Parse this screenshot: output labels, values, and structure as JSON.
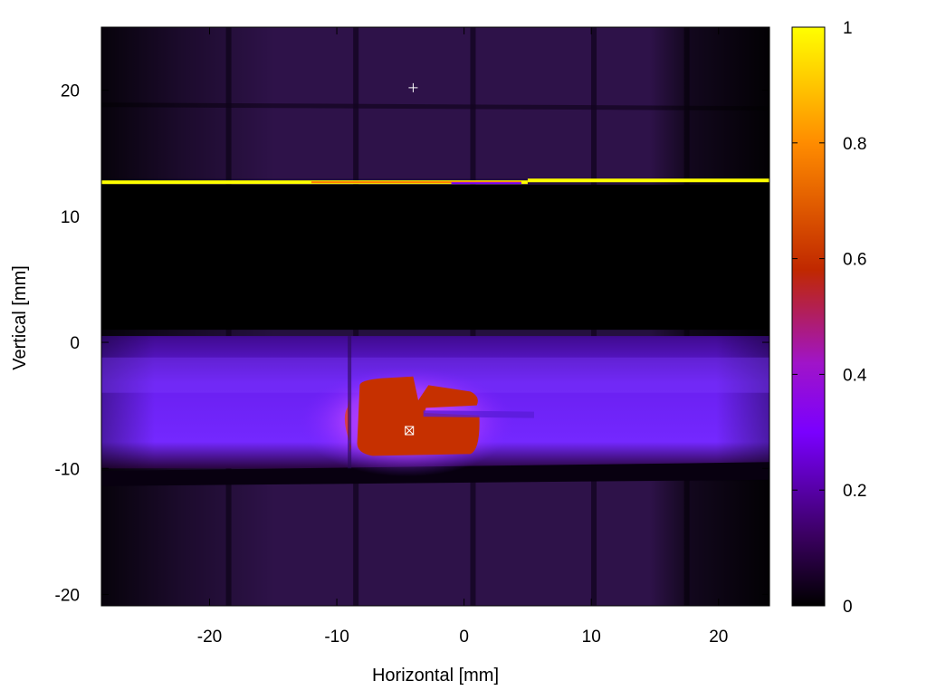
{
  "chart_data": {
    "type": "heatmap",
    "xlabel": "Horizontal [mm]",
    "ylabel": "Vertical [mm]",
    "xlim": [
      -28.5,
      24.0
    ],
    "ylim": [
      -20.9,
      25.0
    ],
    "x_ticks": [
      -20,
      -10,
      0,
      10,
      20
    ],
    "y_ticks": [
      -20,
      -10,
      0,
      10,
      20
    ],
    "x_tick_labels": [
      "-20",
      "-10",
      "0",
      "10",
      "20"
    ],
    "y_tick_labels": [
      "-20",
      "-10",
      "0",
      "10",
      "20"
    ],
    "colorbar": {
      "range": [
        0,
        1
      ],
      "ticks": [
        0,
        0.2,
        0.4,
        0.6,
        0.8,
        1
      ],
      "tick_labels": [
        "0",
        "0.2",
        "0.4",
        "0.6",
        "0.8",
        "1"
      ],
      "colormap": [
        "#000000",
        "#3a0060",
        "#7a00ff",
        "#c02800",
        "#ff8c00",
        "#ffff00"
      ]
    },
    "regions": [
      {
        "name": "upper background",
        "y_range": [
          13,
          25
        ],
        "value": 0.1
      },
      {
        "name": "dark band",
        "y_range": [
          1,
          12.5
        ],
        "value": 0.0
      },
      {
        "name": "beam band",
        "y_range": [
          -10,
          0.5
        ],
        "value": 0.25
      },
      {
        "name": "hot spot",
        "x_range": [
          -10,
          1.5
        ],
        "y_range": [
          -9,
          -3
        ],
        "value": 0.55
      },
      {
        "name": "lower background",
        "y_range": [
          -20.9,
          -11
        ],
        "value": 0.1
      },
      {
        "name": "saturated line",
        "y": 12.7,
        "value": 1.0
      }
    ],
    "grid_lines_x": [
      -18.5,
      -8.5,
      0.7,
      10.2,
      17.5
    ],
    "grid_lines_y": [
      18.7,
      -10.8
    ],
    "markers": [
      {
        "type": "plus",
        "x": -4.0,
        "y": 20.2
      },
      {
        "type": "boxed-cross",
        "x": -4.3,
        "y": -7.0
      }
    ]
  }
}
